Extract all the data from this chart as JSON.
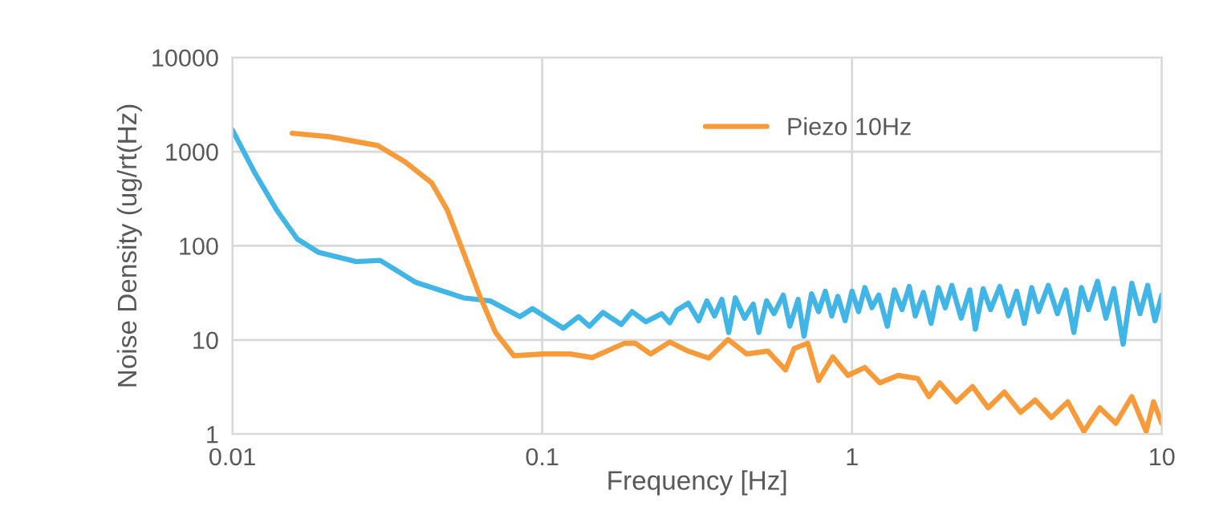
{
  "chart_data": {
    "type": "line",
    "xlabel": "Frequency [Hz]",
    "ylabel": "Noise Density (ug/rt(Hz)",
    "log": "xy",
    "grid": true,
    "legend": "top",
    "xlim": [
      0.01,
      10
    ],
    "xticks": [
      0.01,
      0.1,
      1,
      10
    ],
    "ylim": [
      1,
      10000
    ],
    "yticks": [
      1,
      10,
      100,
      1000,
      10000
    ],
    "series": [
      {
        "color": "#41b6e6",
        "x": [
          0.01,
          0.0118,
          0.0139,
          0.0162,
          0.019,
          0.0251,
          0.03,
          0.039,
          0.0557,
          0.068,
          0.0847,
          0.093,
          0.117,
          0.131,
          0.142,
          0.157,
          0.18,
          0.195,
          0.216,
          0.243,
          0.258,
          0.272,
          0.296,
          0.32,
          0.34,
          0.36,
          0.38,
          0.4,
          0.42,
          0.45,
          0.48,
          0.5,
          0.53,
          0.56,
          0.6,
          0.63,
          0.67,
          0.7,
          0.74,
          0.78,
          0.82,
          0.86,
          0.9,
          0.95,
          1.0,
          1.05,
          1.1,
          1.16,
          1.22,
          1.3,
          1.37,
          1.45,
          1.53,
          1.6,
          1.7,
          1.8,
          1.9,
          2.0,
          2.1,
          2.25,
          2.4,
          2.5,
          2.65,
          2.8,
          3.0,
          3.2,
          3.4,
          3.6,
          3.8,
          4.0,
          4.3,
          4.6,
          4.9,
          5.2,
          5.5,
          5.8,
          6.2,
          6.6,
          7.0,
          7.5,
          8.0,
          8.5,
          9.0,
          9.5,
          10
        ],
        "values": [
          1700,
          600,
          240,
          118,
          85,
          68,
          70,
          41,
          28,
          26,
          17.7,
          21.5,
          13.3,
          17.7,
          14,
          19.6,
          14.6,
          20,
          15.6,
          19,
          15.2,
          20.7,
          24.6,
          16,
          26,
          18,
          27,
          12,
          28,
          17,
          24,
          12,
          26,
          19,
          30,
          14,
          27,
          11,
          31,
          20,
          33,
          18,
          29,
          16,
          33,
          20,
          36,
          22,
          30,
          14,
          34,
          21,
          37,
          18,
          32,
          15,
          36,
          22,
          38,
          17,
          34,
          13,
          35,
          21,
          37,
          18,
          33,
          15,
          36,
          20,
          38,
          19,
          34,
          12,
          36,
          21,
          42,
          17,
          35,
          9,
          40,
          19,
          38,
          16,
          30
        ]
      },
      {
        "name": "Piezo 10Hz",
        "color": "#f79b3a",
        "x": [
          0.0156,
          0.0206,
          0.0295,
          0.036,
          0.044,
          0.0494,
          0.0557,
          0.0627,
          0.0707,
          0.081,
          0.101,
          0.123,
          0.145,
          0.184,
          0.2,
          0.224,
          0.258,
          0.296,
          0.345,
          0.398,
          0.457,
          0.535,
          0.61,
          0.65,
          0.72,
          0.78,
          0.867,
          0.97,
          1.1,
          1.23,
          1.41,
          1.63,
          1.77,
          1.92,
          2.17,
          2.45,
          2.75,
          3.1,
          3.5,
          3.9,
          4.4,
          4.97,
          5.6,
          6.3,
          7.1,
          8.0,
          8.9,
          9.4,
          10
        ],
        "values": [
          1570,
          1440,
          1160,
          783,
          465,
          240,
          85,
          30,
          12,
          6.8,
          7.1,
          7.1,
          6.5,
          9.2,
          9.2,
          7.1,
          9.5,
          7.6,
          6.4,
          10.1,
          7.1,
          7.6,
          4.8,
          8.1,
          9.2,
          3.7,
          6.6,
          4.2,
          5.1,
          3.5,
          4.2,
          3.9,
          2.5,
          3.5,
          2.2,
          3.2,
          1.9,
          2.8,
          1.7,
          2.3,
          1.5,
          2.2,
          1.07,
          1.9,
          1.3,
          2.5,
          1.07,
          2.2,
          1.3
        ]
      }
    ]
  }
}
